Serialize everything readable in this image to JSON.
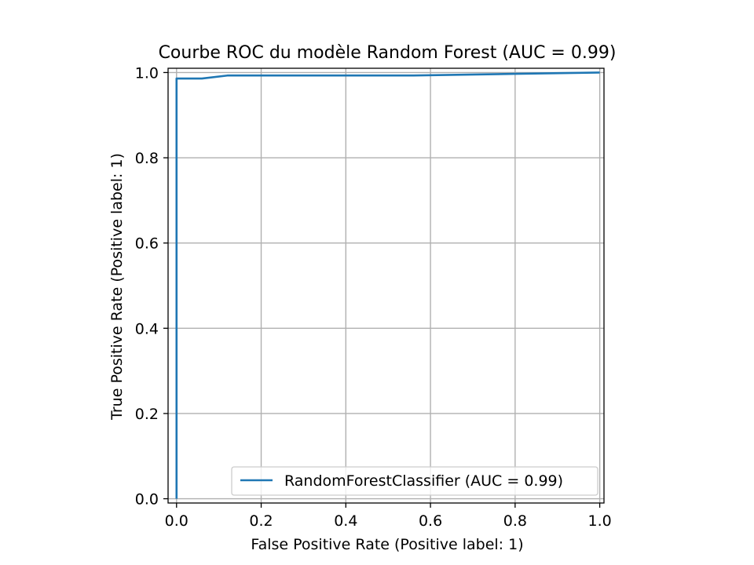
{
  "chart_data": {
    "type": "line",
    "title": "Courbe ROC du modèle Random Forest (AUC = 0.99)",
    "xlabel": "False Positive Rate (Positive label: 1)",
    "ylabel": "True Positive Rate (Positive label: 1)",
    "xlim": [
      -0.02,
      1.01
    ],
    "ylim": [
      -0.01,
      1.01
    ],
    "xticks": [
      0.0,
      0.2,
      0.4,
      0.6,
      0.8,
      1.0
    ],
    "yticks": [
      0.0,
      0.2,
      0.4,
      0.6,
      0.8,
      1.0
    ],
    "xtick_labels": [
      "0.0",
      "0.2",
      "0.4",
      "0.6",
      "0.8",
      "1.0"
    ],
    "ytick_labels": [
      "0.0",
      "0.2",
      "0.4",
      "0.6",
      "0.8",
      "1.0"
    ],
    "grid": true,
    "legend_position": "lower-right",
    "series": [
      {
        "name": "RandomForestClassifier (AUC = 0.99)",
        "color": "#1f77b4",
        "x": [
          0.0,
          0.0,
          0.06,
          0.12,
          0.56,
          0.8,
          1.0
        ],
        "y": [
          0.0,
          0.986,
          0.986,
          0.993,
          0.993,
          0.997,
          1.0
        ]
      }
    ]
  }
}
